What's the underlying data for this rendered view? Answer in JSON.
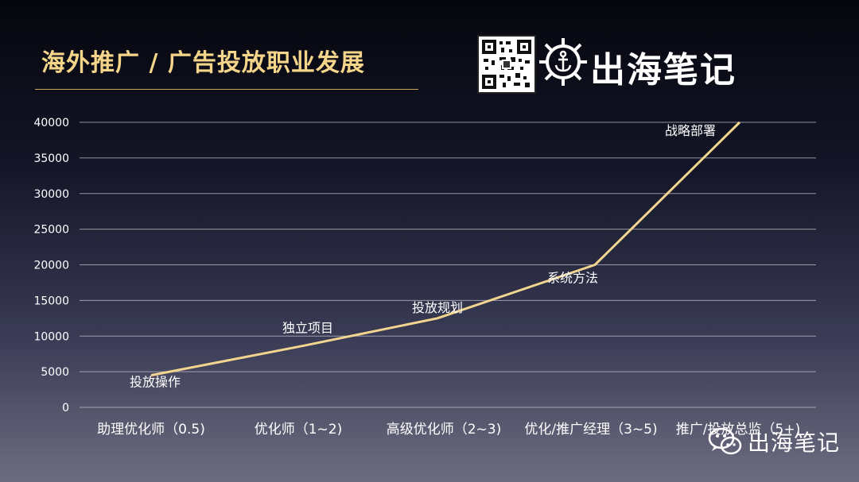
{
  "page": {
    "title": "海外推广 / 广告投放职业发展",
    "brand_name": "出海笔记",
    "watermark_text": "出海笔记",
    "brand_logo_icon": "ship-wheel-anchor-icon",
    "qr_icon": "qr-code-icon",
    "watermark_icon": "wechat-icon"
  },
  "colors": {
    "title": "#f4d58a",
    "line": "#f2d58e",
    "grid": "#c8c8d0",
    "text": "#ffffff"
  },
  "chart_data": {
    "type": "line",
    "title": "",
    "xlabel": "",
    "ylabel": "",
    "ylim": [
      0,
      40000
    ],
    "yticks": [
      0,
      5000,
      10000,
      15000,
      20000,
      25000,
      30000,
      35000,
      40000
    ],
    "grid": true,
    "categories": [
      "助理优化师（0.5)",
      "优化师（1~2)",
      "高级优化师（2~3)",
      "优化/推广经理（3~5)",
      "推广/投放总监（5+)"
    ],
    "series": [
      {
        "values": [
          4500,
          8500,
          12500,
          20000,
          40000
        ],
        "point_labels": [
          "投放操作",
          "独立项目",
          "投放规划",
          "系统方法",
          "战略部署"
        ]
      }
    ]
  }
}
